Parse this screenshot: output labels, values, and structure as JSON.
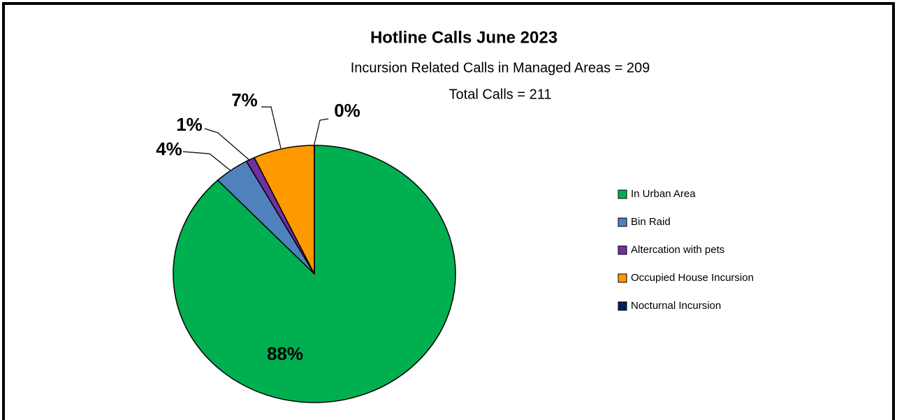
{
  "chart_data": {
    "type": "pie",
    "title": "Hotline Calls June 2023",
    "subtitle": [
      "Incursion Related Calls in Managed Areas  = 209",
      "Total Calls = 211"
    ],
    "categories": [
      "In Urban Area",
      "Bin Raid",
      "Altercation with pets",
      "Occupied House Incursion",
      "Nocturnal Incursion"
    ],
    "values": [
      88,
      4,
      1,
      7,
      0
    ],
    "value_labels": [
      "88%",
      "4%",
      "1%",
      "7%",
      "0%"
    ],
    "colors": [
      "#00b050",
      "#4f81bd",
      "#7030a0",
      "#ff9900",
      "#002060"
    ],
    "legend": "right"
  }
}
